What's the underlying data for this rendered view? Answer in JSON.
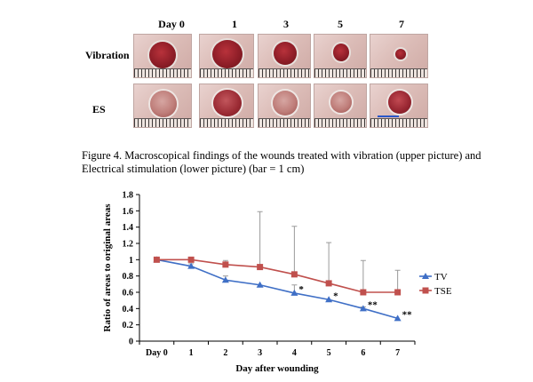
{
  "figure": {
    "column_labels": [
      "Day 0",
      "1",
      "3",
      "5",
      "7"
    ],
    "row_labels": [
      "Vibration",
      "ES"
    ],
    "caption": "Figure 4. Macroscopical findings of the wounds treated with vibration (upper picture) and Electrical stimulation (lower picture) (bar = 1 cm)"
  },
  "chart_data": {
    "type": "line",
    "title": "",
    "xlabel": "Day after wounding",
    "ylabel": "Ratio of areas to original areas",
    "categories": [
      "Day 0",
      "1",
      "2",
      "3",
      "4",
      "5",
      "6",
      "7"
    ],
    "ylim": [
      0,
      1.8
    ],
    "yticks": [
      "0",
      "0.2",
      "0.4",
      "0.6",
      "0.8",
      "1",
      "1.2",
      "1.4",
      "1.6",
      "1.8"
    ],
    "legend_position": "right",
    "series": [
      {
        "name": "TV",
        "color": "#3f6fc6",
        "marker": "triangle",
        "values": [
          1.0,
          0.92,
          0.75,
          0.69,
          0.59,
          0.51,
          0.4,
          0.28
        ],
        "error_up": [
          0.0,
          0.03,
          0.05,
          0.0,
          0.1,
          0.0,
          0.02,
          0.0
        ],
        "annotations": [
          "",
          "",
          "",
          "",
          "*",
          "*",
          "**",
          "**"
        ]
      },
      {
        "name": "TSE",
        "color": "#c0504d",
        "marker": "square",
        "values": [
          1.0,
          1.0,
          0.94,
          0.91,
          0.82,
          0.71,
          0.6,
          0.6
        ],
        "error_up": [
          0.0,
          0.0,
          0.05,
          0.68,
          0.59,
          0.5,
          0.39,
          0.27
        ],
        "annotations": [
          "",
          "",
          "",
          "",
          "",
          "",
          "",
          ""
        ]
      }
    ],
    "grid": false
  }
}
